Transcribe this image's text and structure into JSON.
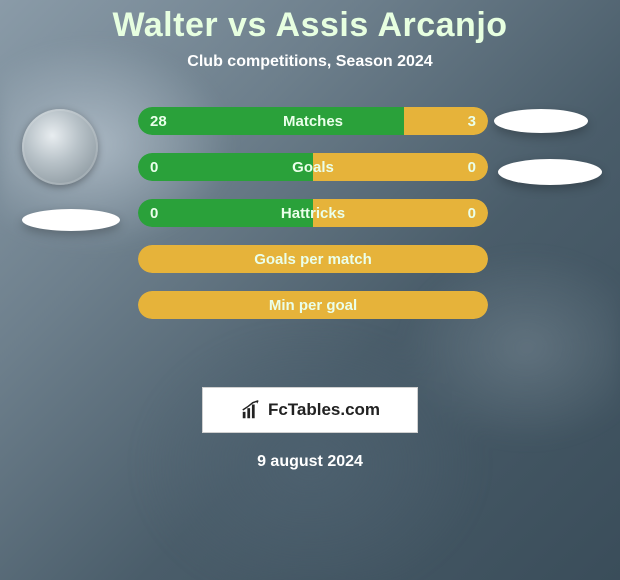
{
  "title": "Walter vs Assis Arcanjo",
  "subtitle": "Club competitions, Season 2024",
  "date": "9 august 2024",
  "badge": {
    "text": "FcTables.com"
  },
  "colors": {
    "player1": "#2aa13a",
    "player2": "#e6b33a",
    "title_text": "#e7ffe0",
    "bar_text": "#eaffea"
  },
  "rows": [
    {
      "label": "Matches",
      "left_val": "28",
      "right_val": "3",
      "left_pct": 76,
      "right_pct": 24
    },
    {
      "label": "Goals",
      "left_val": "0",
      "right_val": "0",
      "left_pct": 50,
      "right_pct": 50
    },
    {
      "label": "Hattricks",
      "left_val": "0",
      "right_val": "0",
      "left_pct": 50,
      "right_pct": 50
    },
    {
      "label": "Goals per match",
      "left_val": "",
      "right_val": "",
      "left_pct": 0,
      "right_pct": 100
    },
    {
      "label": "Min per goal",
      "left_val": "",
      "right_val": "",
      "left_pct": 0,
      "right_pct": 100
    }
  ]
}
